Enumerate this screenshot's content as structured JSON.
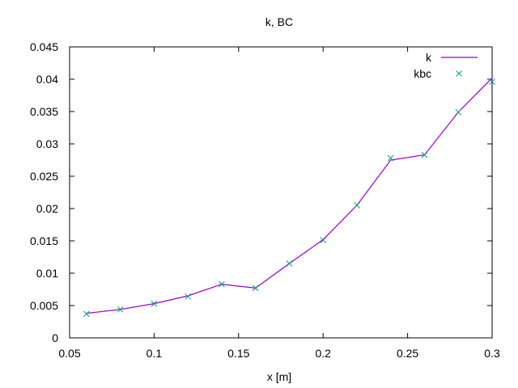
{
  "chart_data": {
    "type": "line",
    "title": "k, BC",
    "xlabel": "x [m]",
    "ylabel": "",
    "xlim": [
      0.05,
      0.3
    ],
    "ylim": [
      0,
      0.045
    ],
    "x_ticks": [
      "0.05",
      "0.1",
      "0.15",
      "0.2",
      "0.25",
      "0.3"
    ],
    "y_ticks": [
      "0",
      "0.005",
      "0.01",
      "0.015",
      "0.02",
      "0.025",
      "0.03",
      "0.035",
      "0.04",
      "0.045"
    ],
    "grid": false,
    "legend_position": "top-right",
    "series": [
      {
        "name": "k",
        "style": "line",
        "color": "#9400d3",
        "x": [
          0.06,
          0.08,
          0.1,
          0.12,
          0.14,
          0.16,
          0.18,
          0.2,
          0.22,
          0.24,
          0.26,
          0.28,
          0.3,
          0.3
        ],
        "y": [
          0.0038,
          0.0044,
          0.0053,
          0.0065,
          0.0083,
          0.0077,
          0.0115,
          0.0152,
          0.0205,
          0.0275,
          0.0283,
          0.0349,
          0.0402,
          0.0398
        ]
      },
      {
        "name": "kbc",
        "style": "points",
        "marker": "x",
        "color": "#009e73",
        "x": [
          0.06,
          0.08,
          0.1,
          0.12,
          0.14,
          0.16,
          0.18,
          0.2,
          0.22,
          0.24,
          0.26,
          0.28,
          0.3
        ],
        "y": [
          0.0037,
          0.0044,
          0.0053,
          0.0064,
          0.0083,
          0.0077,
          0.0115,
          0.0151,
          0.0205,
          0.0278,
          0.0283,
          0.0349,
          0.0396
        ]
      }
    ]
  }
}
